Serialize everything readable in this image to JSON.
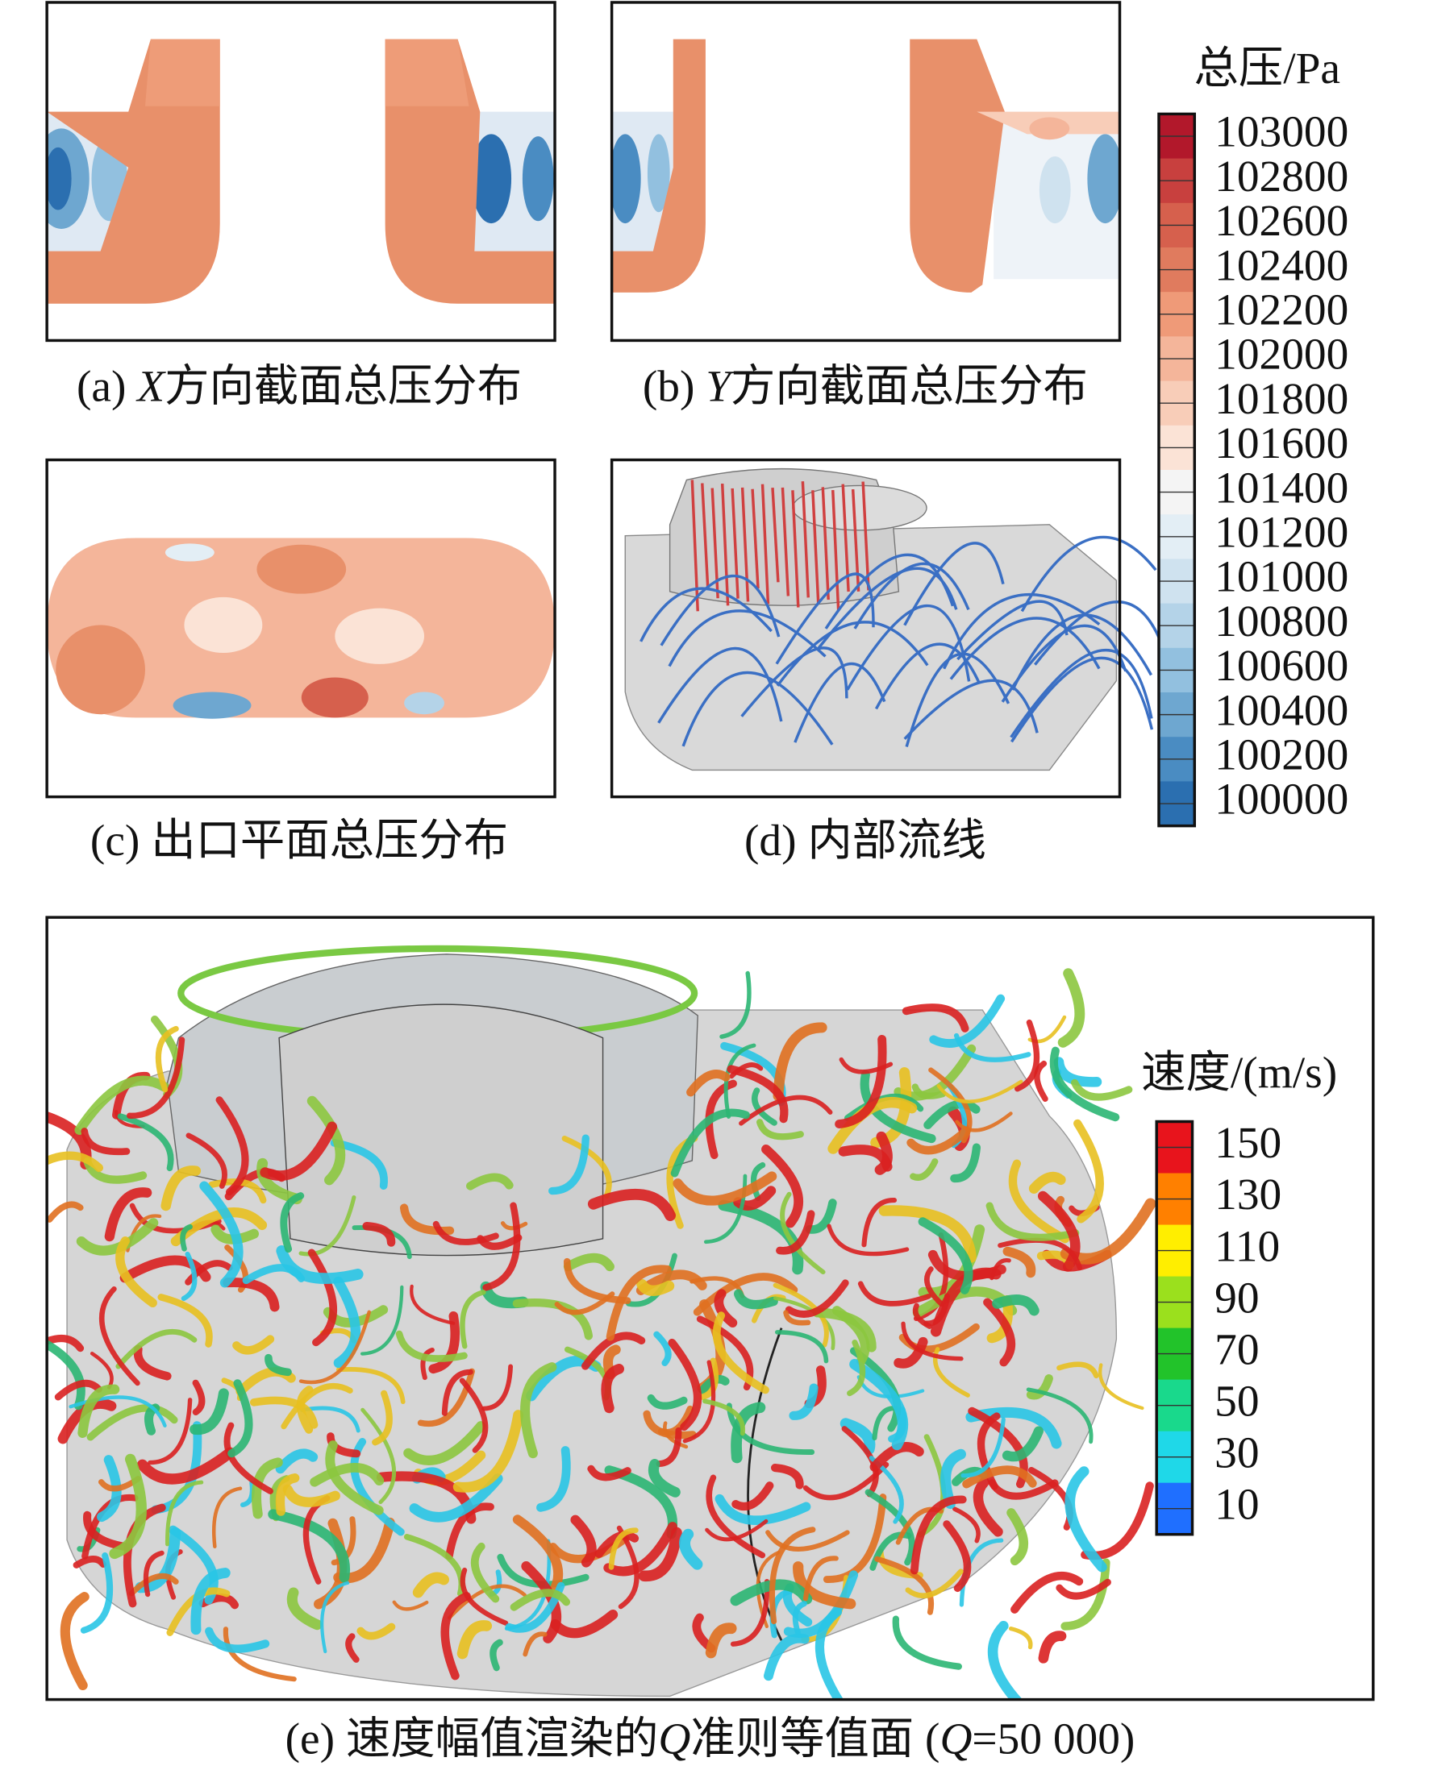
{
  "panels": [
    {
      "caption": {
        "label": "(a)",
        "var": "X",
        "text": "方向截面总压分布"
      }
    },
    {
      "caption": {
        "label": "(b)",
        "var": "Y",
        "text": "方向截面总压分布"
      }
    },
    {
      "caption": {
        "label": "(c)",
        "text": "出口平面总压分布"
      }
    },
    {
      "caption": {
        "label": "(d)",
        "text": "内部流线"
      }
    },
    {
      "caption": {
        "label": "(e)",
        "text1": "速度幅值渲染的",
        "var1": "Q",
        "text2": "准则等值面 (",
        "var2": "Q",
        "text3": "=50 000)"
      }
    }
  ],
  "pressure_legend": {
    "title": "总压/Pa",
    "labels": [
      103000,
      102800,
      102600,
      102400,
      102200,
      102000,
      101800,
      101600,
      101400,
      101200,
      101000,
      100800,
      100600,
      100400,
      100200,
      100000
    ],
    "colors": [
      "#b2182b",
      "#c8403e",
      "#d6604d",
      "#e07b5e",
      "#ef9a78",
      "#f4b59a",
      "#f8cdb8",
      "#fbe3d6",
      "#f4f4f4",
      "#e3eef5",
      "#cfe2ef",
      "#b4d3e8",
      "#92c0df",
      "#6ea7d0",
      "#4a8cc2",
      "#2b6fb0"
    ]
  },
  "velocity_legend": {
    "title": "速度/(m/s)",
    "labels": [
      150,
      130,
      110,
      90,
      70,
      50,
      30,
      10
    ],
    "colors": [
      "#e8141c",
      "#ff8000",
      "#ffee00",
      "#9be01d",
      "#22c32a",
      "#19d98c",
      "#1fd8e8",
      "#1f6fff"
    ]
  }
}
